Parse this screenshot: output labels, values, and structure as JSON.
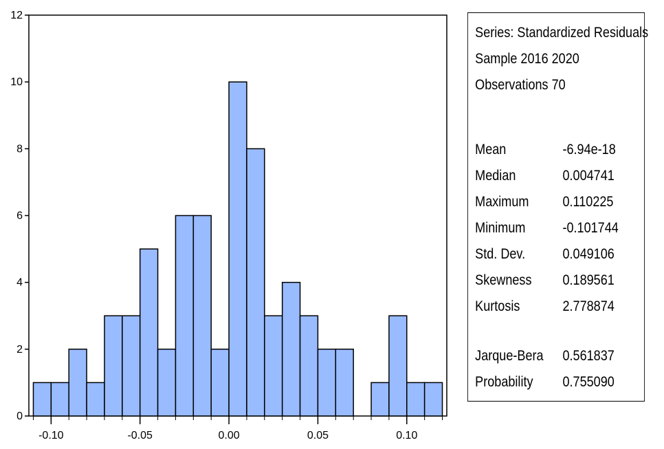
{
  "chart_data": {
    "type": "bar",
    "subtype": "histogram",
    "bin_width": 0.01,
    "bins": [
      {
        "from": -0.11,
        "to": -0.1,
        "count": 1
      },
      {
        "from": -0.1,
        "to": -0.09,
        "count": 1
      },
      {
        "from": -0.09,
        "to": -0.08,
        "count": 2
      },
      {
        "from": -0.08,
        "to": -0.07,
        "count": 1
      },
      {
        "from": -0.07,
        "to": -0.06,
        "count": 3
      },
      {
        "from": -0.06,
        "to": -0.05,
        "count": 3
      },
      {
        "from": -0.05,
        "to": -0.04,
        "count": 5
      },
      {
        "from": -0.04,
        "to": -0.03,
        "count": 2
      },
      {
        "from": -0.03,
        "to": -0.02,
        "count": 6
      },
      {
        "from": -0.02,
        "to": -0.01,
        "count": 6
      },
      {
        "from": -0.01,
        "to": 0.0,
        "count": 2
      },
      {
        "from": 0.0,
        "to": 0.01,
        "count": 10
      },
      {
        "from": 0.01,
        "to": 0.02,
        "count": 8
      },
      {
        "from": 0.02,
        "to": 0.03,
        "count": 3
      },
      {
        "from": 0.03,
        "to": 0.04,
        "count": 4
      },
      {
        "from": 0.04,
        "to": 0.05,
        "count": 3
      },
      {
        "from": 0.05,
        "to": 0.06,
        "count": 2
      },
      {
        "from": 0.06,
        "to": 0.07,
        "count": 2
      },
      {
        "from": 0.07,
        "to": 0.08,
        "count": 0
      },
      {
        "from": 0.08,
        "to": 0.09,
        "count": 1
      },
      {
        "from": 0.09,
        "to": 0.1,
        "count": 3
      },
      {
        "from": 0.1,
        "to": 0.11,
        "count": 1
      },
      {
        "from": 0.11,
        "to": 0.12,
        "count": 1
      }
    ],
    "xlim": [
      -0.1125,
      0.1225
    ],
    "ylim": [
      0,
      12
    ],
    "x_ticks": [
      -0.1,
      -0.05,
      0.0,
      0.05,
      0.1
    ],
    "x_tick_labels": [
      "-0.10",
      "-0.05",
      "0.00",
      "0.05",
      "0.10"
    ],
    "y_ticks": [
      0,
      2,
      4,
      6,
      8,
      10,
      12
    ],
    "y_tick_labels": [
      "0",
      "2",
      "4",
      "6",
      "8",
      "10",
      "12"
    ],
    "title": "",
    "xlabel": "",
    "ylabel": "",
    "grid": false,
    "bar_color": "#99bbff",
    "bar_edge_color": "#000000"
  },
  "stats": {
    "series_line": "Series: Standardized Residuals",
    "sample_line": "Sample 2016 2020",
    "observations_line": "Observations 70",
    "rows": [
      {
        "label": "Mean",
        "value": "-6.94e-18"
      },
      {
        "label": "Median",
        "value": " 0.004741"
      },
      {
        "label": "Maximum",
        "value": " 0.110225"
      },
      {
        "label": "Minimum",
        "value": "-0.101744"
      },
      {
        "label": "Std. Dev.",
        "value": " 0.049106"
      },
      {
        "label": "Skewness",
        "value": " 0.189561"
      },
      {
        "label": "Kurtosis",
        "value": " 2.778874"
      }
    ],
    "test_rows": [
      {
        "label": "Jarque-Bera",
        "value": " 0.561837"
      },
      {
        "label": "Probability",
        "value": " 0.755090"
      }
    ]
  }
}
